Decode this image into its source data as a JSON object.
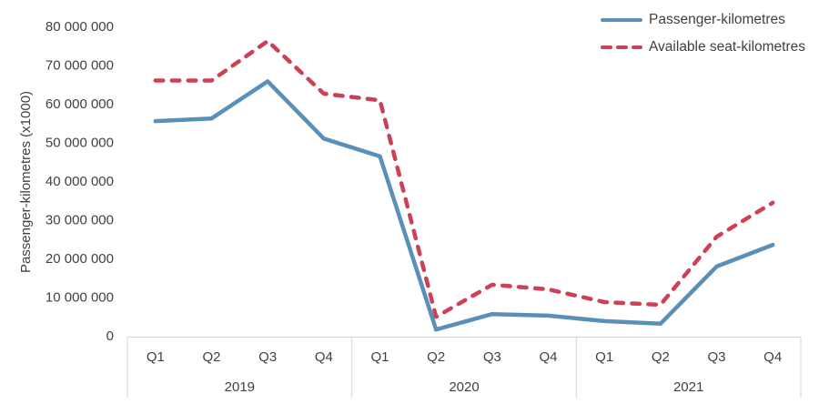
{
  "chart_data": {
    "type": "line",
    "title": "",
    "ylabel": "Passenger-kilometres (x1000)",
    "xlabel": "",
    "grid": false,
    "legend_position": "top-right",
    "ylim": [
      0,
      80000000
    ],
    "ytick_step": 10000000,
    "ytick_labels": [
      "0",
      "10 000 000",
      "20 000 000",
      "30 000 000",
      "40 000 000",
      "50 000 000",
      "60 000 000",
      "70 000 000",
      "80 000 000"
    ],
    "year_groups": [
      {
        "label": "2019",
        "quarters": [
          "Q1",
          "Q2",
          "Q3",
          "Q4"
        ]
      },
      {
        "label": "2020",
        "quarters": [
          "Q1",
          "Q2",
          "Q3",
          "Q4"
        ]
      },
      {
        "label": "2021",
        "quarters": [
          "Q1",
          "Q2",
          "Q3",
          "Q4"
        ]
      }
    ],
    "categories": [
      "2019 Q1",
      "2019 Q2",
      "2019 Q3",
      "2019 Q4",
      "2020 Q1",
      "2020 Q2",
      "2020 Q3",
      "2020 Q4",
      "2021 Q1",
      "2021 Q2",
      "2021 Q3",
      "2021 Q4"
    ],
    "series": [
      {
        "name": "Passenger-kilometres",
        "style": "solid",
        "color": "#5a8fb8",
        "values": [
          55500000,
          56200000,
          65800000,
          51000000,
          46400000,
          1600000,
          5600000,
          5200000,
          3800000,
          3100000,
          17900000,
          23500000
        ]
      },
      {
        "name": "Available seat-kilometres",
        "style": "dashed",
        "color": "#cc4154",
        "values": [
          66000000,
          66000000,
          76200000,
          62600000,
          60900000,
          4900000,
          13200000,
          12000000,
          8700000,
          8000000,
          25600000,
          34400000
        ]
      }
    ]
  },
  "colors": {
    "passenger_line": "#5a8fb8",
    "available_line": "#cc4154",
    "axis_line": "#d6d6d6",
    "text": "#414141"
  }
}
